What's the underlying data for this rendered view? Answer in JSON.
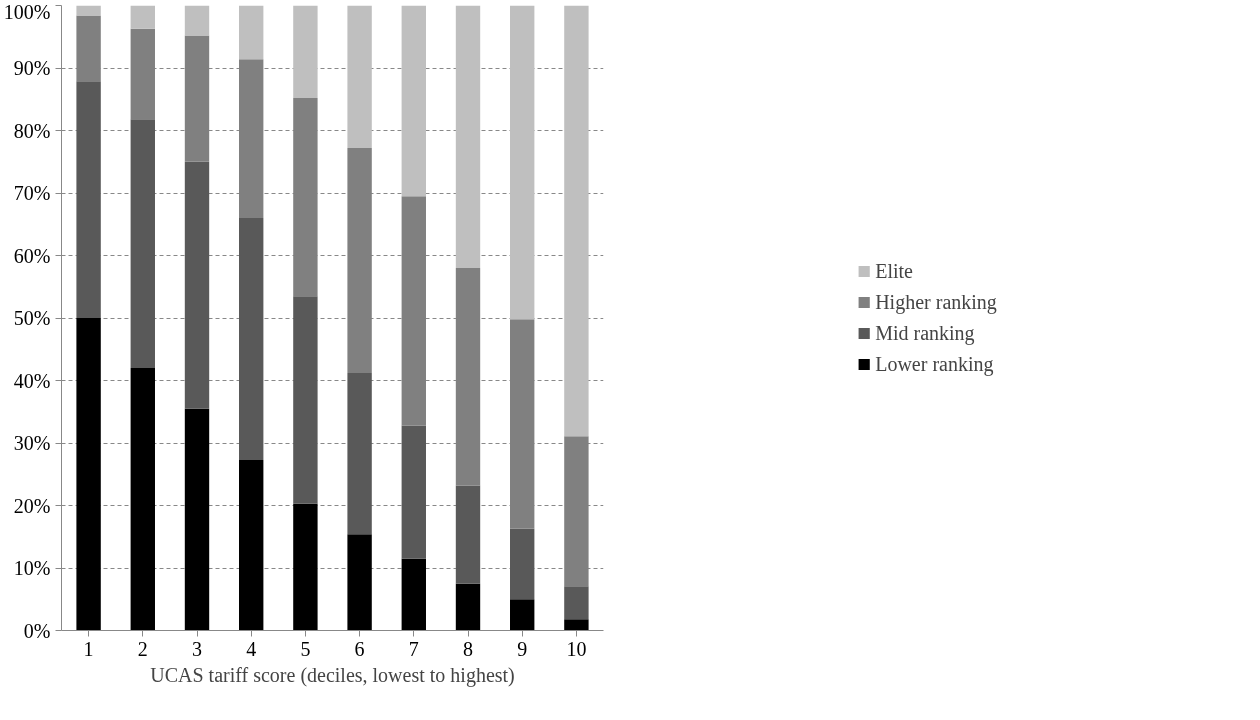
{
  "chart_data": {
    "type": "bar",
    "stacked": true,
    "xlabel": "UCAS tariff score (deciles, lowest to highest)",
    "categories": [
      "1",
      "2",
      "3",
      "4",
      "5",
      "6",
      "7",
      "8",
      "9",
      "10"
    ],
    "series": [
      {
        "name": "Lower ranking",
        "color": "#000000",
        "values": [
          50,
          42,
          35.5,
          27.3,
          20.3,
          15.4,
          11.5,
          7.5,
          5,
          1.8
        ]
      },
      {
        "name": "Mid ranking",
        "color": "#595959",
        "values": [
          37.9,
          39.8,
          39.5,
          38.7,
          33.2,
          25.8,
          21.3,
          15.7,
          11.3,
          5.3
        ]
      },
      {
        "name": "Higher ranking",
        "color": "#808080",
        "values": [
          10.5,
          14.5,
          20.2,
          25.4,
          31.7,
          36,
          36.7,
          34.8,
          33.5,
          24
        ]
      },
      {
        "name": "Elite",
        "color": "#bfbfbf",
        "values": [
          1.6,
          3.7,
          4.8,
          8.6,
          14.8,
          22.8,
          30.5,
          42,
          50.2,
          68.9
        ]
      }
    ],
    "ylim": [
      0,
      100
    ],
    "yticks": [
      {
        "value": 0,
        "label": "0%"
      },
      {
        "value": 10,
        "label": "10%"
      },
      {
        "value": 20,
        "label": "20%"
      },
      {
        "value": 30,
        "label": "30%"
      },
      {
        "value": 40,
        "label": "40%"
      },
      {
        "value": 50,
        "label": "50%"
      },
      {
        "value": 60,
        "label": "60%"
      },
      {
        "value": 70,
        "label": "70%"
      },
      {
        "value": 80,
        "label": "80%"
      },
      {
        "value": 90,
        "label": "90%"
      },
      {
        "value": 100,
        "label": "100%"
      }
    ],
    "grid": "y",
    "legend": "right"
  }
}
